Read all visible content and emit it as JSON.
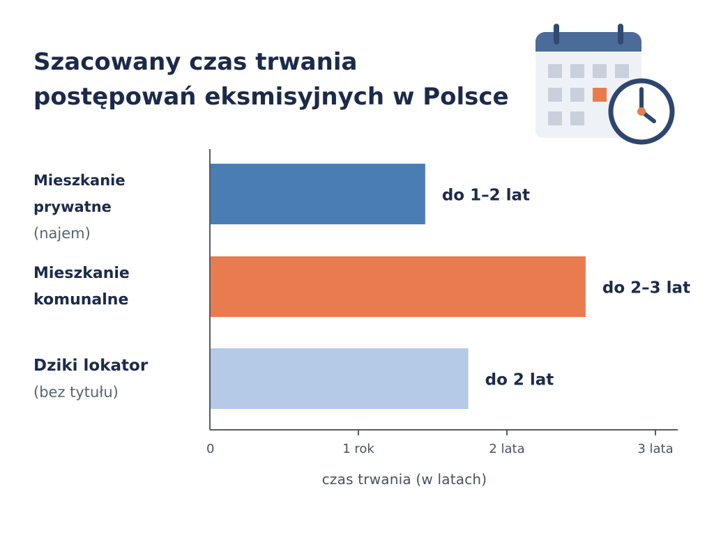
{
  "title_lines": [
    "Szacowany czas trwania",
    "postępowań eksmisyjnych w Polsce"
  ],
  "icon": "calendar-clock-icon",
  "categories": [
    {
      "main": "Mieszkanie prywatne",
      "sub": "(najem)"
    },
    {
      "main": "Mieszkanie komunalne",
      "main_lines": [
        "Mieszkanie",
        "komunalne"
      ],
      "sub": ""
    },
    {
      "main": "Dziki lokator",
      "sub": "(bez tytułu)"
    }
  ],
  "colors": {
    "private": "#4a7db3",
    "communal": "#e87c4e",
    "squatter": "#b4cae6",
    "title": "#1c2a4a",
    "axis": "#555b66"
  },
  "chart_data": {
    "type": "bar",
    "orientation": "horizontal",
    "title": "Szacowany czas trwania postępowań eksmisyjnych w Polsce",
    "categories": [
      "Mieszkanie prywatne (najem)",
      "Mieszkanie komunalne",
      "Dziki lokator (bez tytułu)"
    ],
    "values": [
      1.45,
      2.53,
      1.74
    ],
    "data_labels": [
      "do 1–2 lat",
      "do 2–3 lat",
      "do 2 lat"
    ],
    "bar_colors": [
      "#4a7db3",
      "#e87c4e",
      "#b4cae6"
    ],
    "xlabel": "czas trwania (w latach)",
    "ylabel": "",
    "xlim": [
      0,
      3.15
    ],
    "xticks": [
      0,
      1,
      2,
      3
    ],
    "xtick_labels": [
      "0",
      "1 rok",
      "2 lata",
      "3 lata"
    ],
    "grid": false,
    "legend": "none"
  }
}
